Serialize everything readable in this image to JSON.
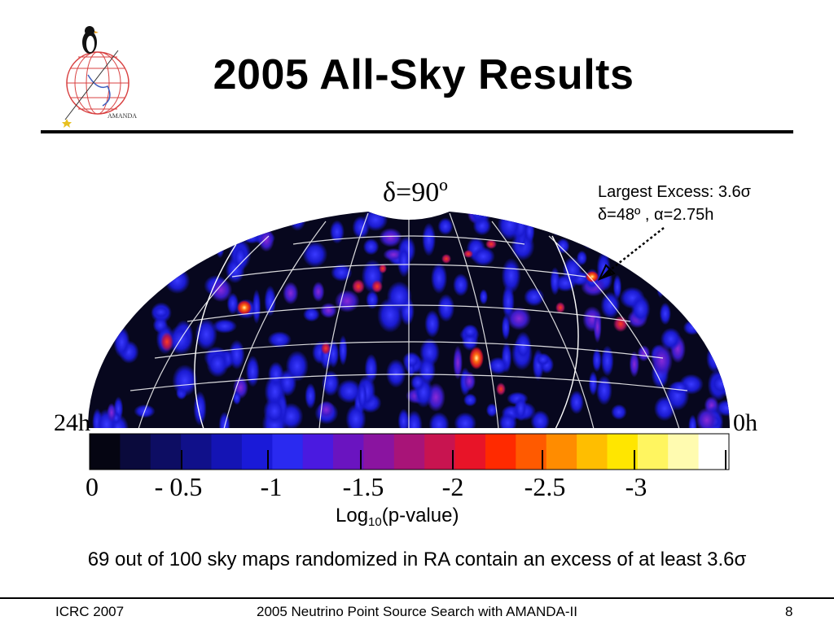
{
  "slide": {
    "title": "2005 All-Sky Results",
    "logo_text": "AMANDA"
  },
  "skymap": {
    "declination_label": "δ=90º",
    "ra_left_label": "24h",
    "ra_right_label": "0h",
    "annotation": {
      "line1": "Largest Excess: 3.6σ",
      "line2": "δ=48º , α=2.75h"
    }
  },
  "colorbar": {
    "colors": [
      "#050512",
      "#0a0a3c",
      "#0d0d63",
      "#10108a",
      "#1414b4",
      "#1a1ad8",
      "#2a2af0",
      "#4a1ae0",
      "#6a14c0",
      "#8a14a0",
      "#a81478",
      "#c81450",
      "#e81428",
      "#ff2a00",
      "#ff5a00",
      "#ff8c00",
      "#ffbe00",
      "#ffe600",
      "#fff560",
      "#fffbb0",
      "#ffffff"
    ],
    "tick_labels": [
      "0",
      "- 0.5",
      "-1",
      "-1.5",
      "-2",
      "-2.5",
      "-3"
    ],
    "axis_label_pre": "Log",
    "axis_label_sub": "10",
    "axis_label_post": "(p-value)"
  },
  "caption": "69 out of 100 sky maps randomized in RA contain an excess of at least 3.6σ",
  "footer": {
    "left": "ICRC 2007",
    "center": "2005 Neutrino Point Source Search with AMANDA-II",
    "page": "8"
  }
}
